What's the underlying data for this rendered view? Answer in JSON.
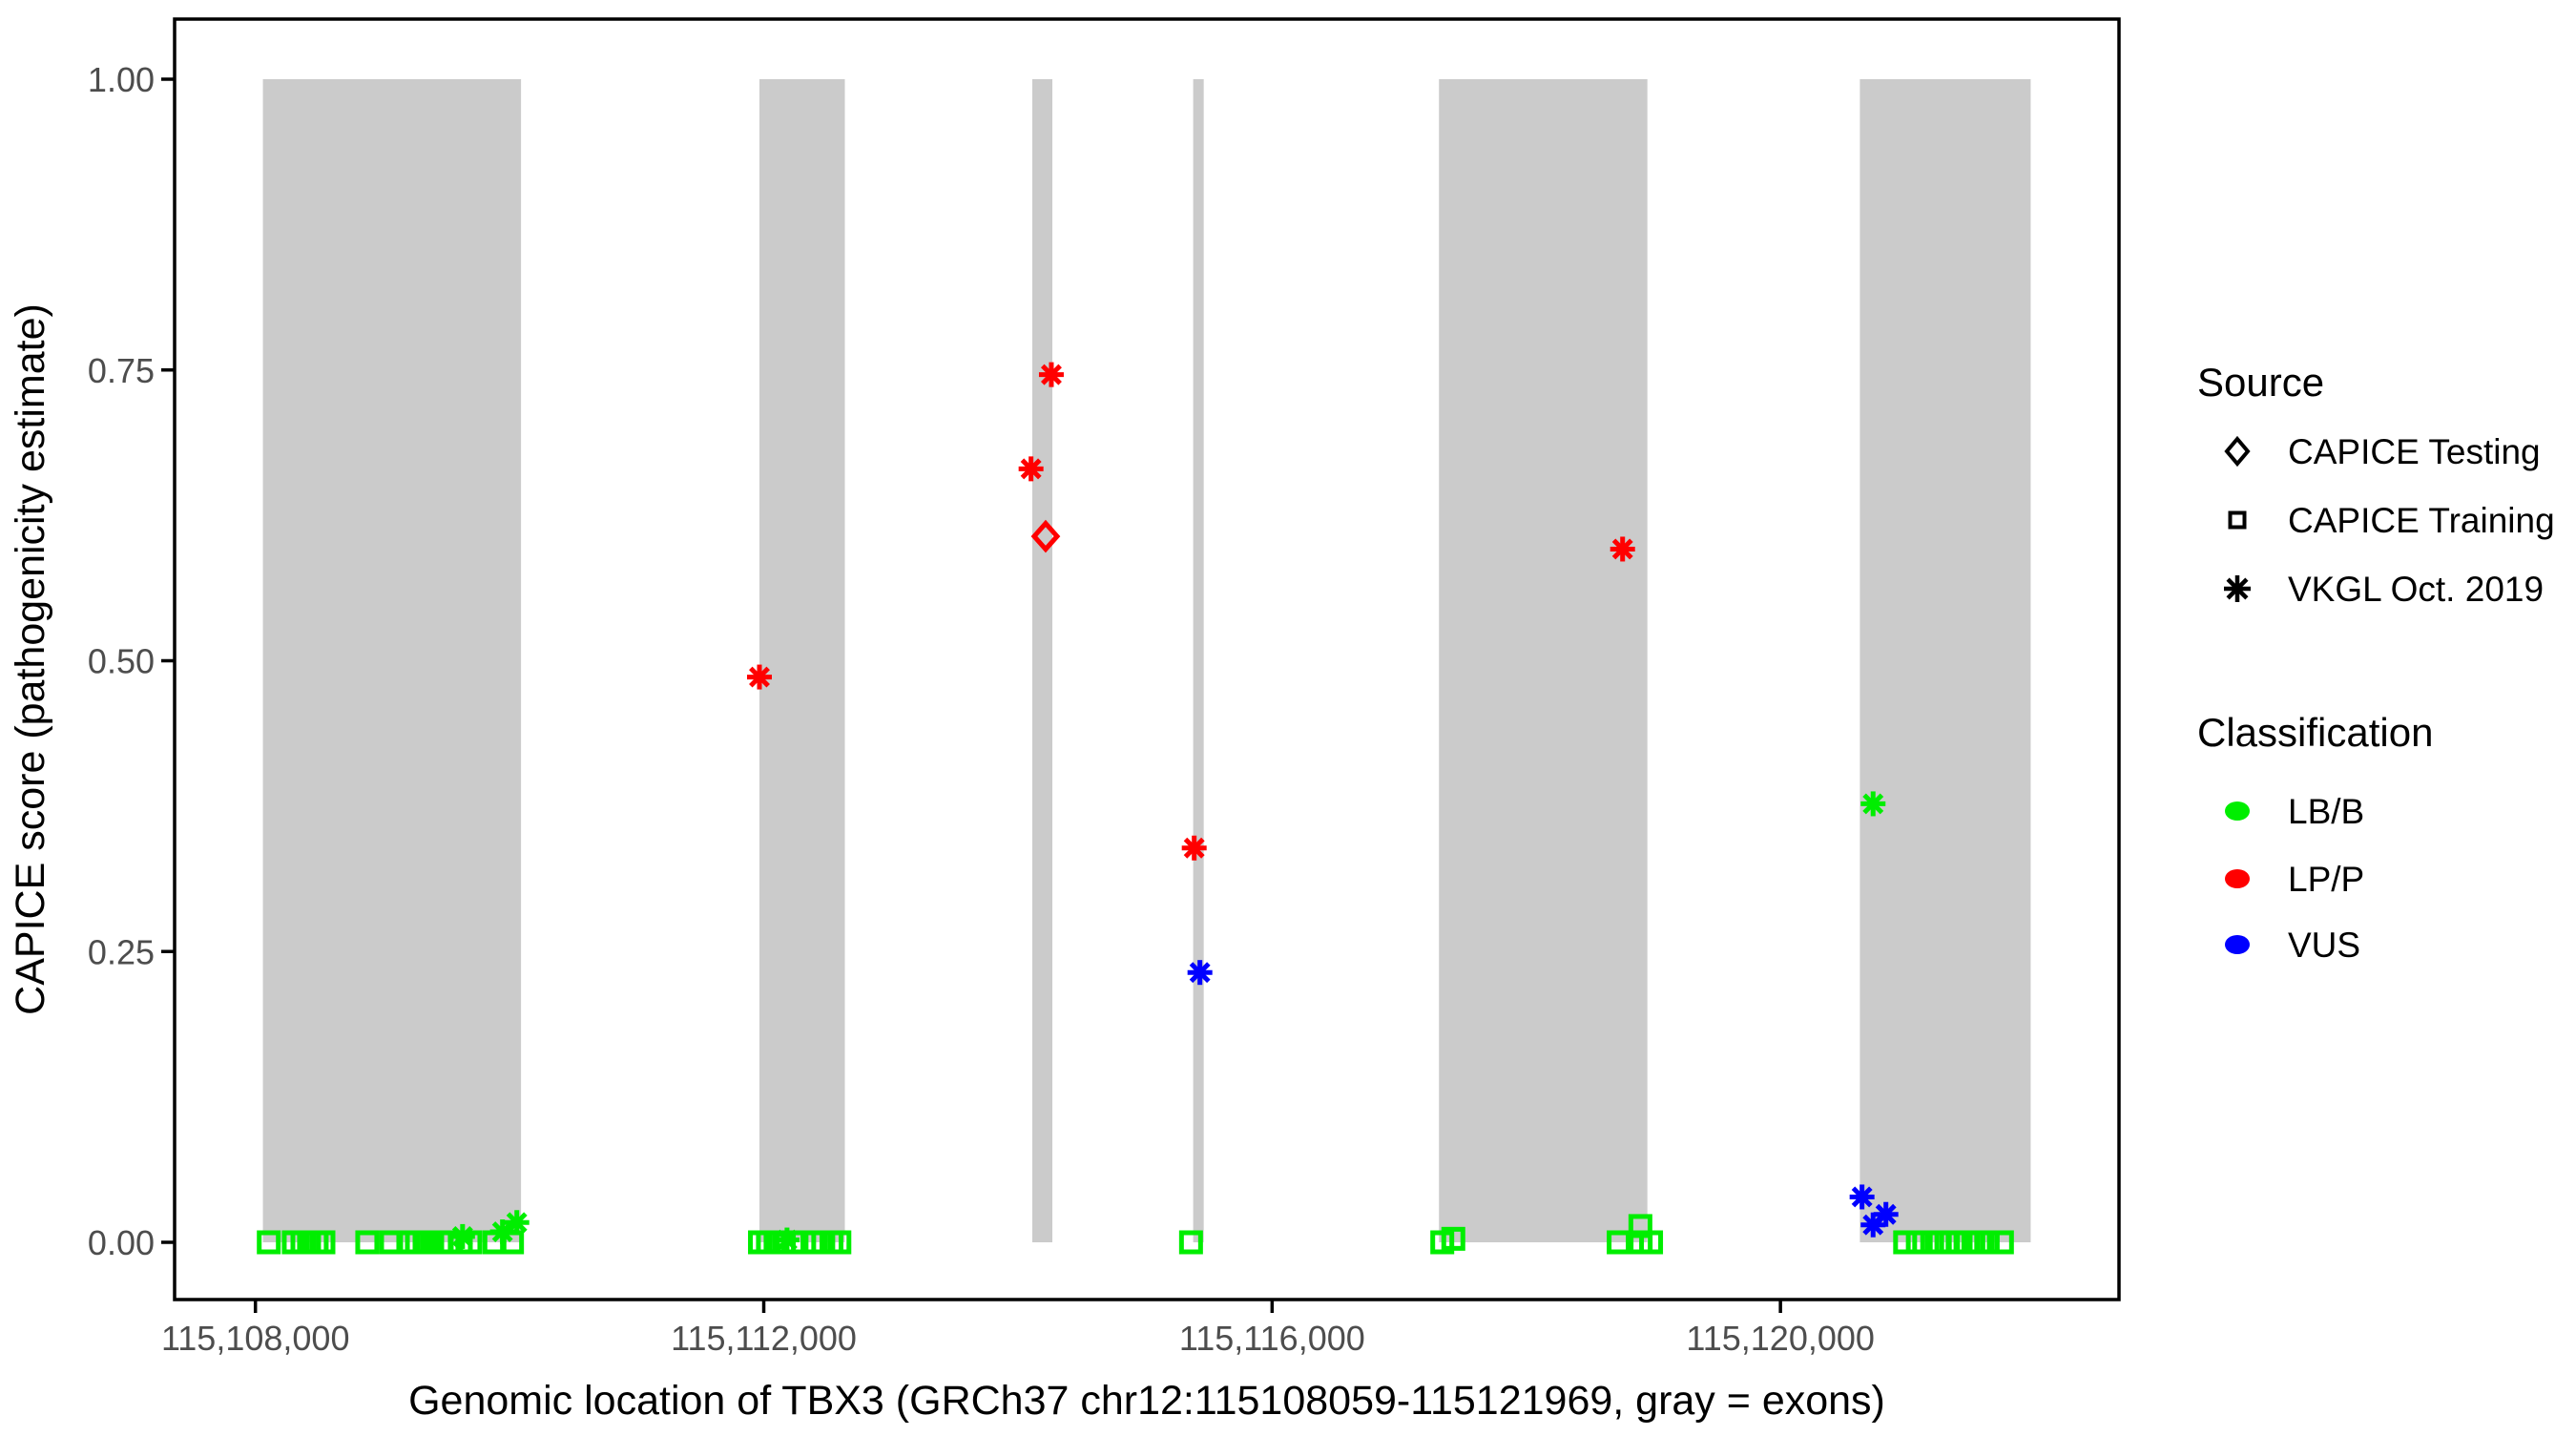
{
  "figure": {
    "background": "#ffffff",
    "panel_border_color": "#000000",
    "exon_color": "#cbcbcb",
    "tick_color": "#000000",
    "tick_label_color": "#4d4d4d",
    "axis_title_color": "#000000",
    "legend_text_color": "#000000"
  },
  "chart_data": {
    "type": "scatter",
    "title": "",
    "xlabel": "Genomic location of TBX3 (GRCh37 chr12:115108059-115121969, gray = exons)",
    "ylabel": "CAPICE score (pathogenicity estimate)",
    "xlim": [
      115107364,
      115122664
    ],
    "ylim": [
      0,
      1
    ],
    "grid": false,
    "x_ticks": [
      {
        "value": 115108000,
        "label": "115,108,000"
      },
      {
        "value": 115112000,
        "label": "115,112,000"
      },
      {
        "value": 115116000,
        "label": "115,116,000"
      },
      {
        "value": 115120000,
        "label": "115,120,000"
      }
    ],
    "y_ticks": [
      {
        "value": 0.0,
        "label": "0.00"
      },
      {
        "value": 0.25,
        "label": "0.25"
      },
      {
        "value": 0.5,
        "label": "0.50"
      },
      {
        "value": 0.75,
        "label": "0.75"
      },
      {
        "value": 1.0,
        "label": "1.00"
      }
    ],
    "exons": [
      {
        "start": 115108059,
        "end": 115110090
      },
      {
        "start": 115111966,
        "end": 115112638
      },
      {
        "start": 115114113,
        "end": 115114271
      },
      {
        "start": 115115379,
        "end": 115115462
      },
      {
        "start": 115117313,
        "end": 115118953
      },
      {
        "start": 115120625,
        "end": 115121969
      }
    ],
    "class_colors": {
      "LB/B": "#00ee00",
      "LP/P": "#ff0000",
      "VUS": "#0000ff"
    },
    "series": [
      {
        "name": "CAPICE Training",
        "marker": "square",
        "points": [
          {
            "x": 115108105,
            "y": 0.0,
            "class": "LB/B"
          },
          {
            "x": 115108302,
            "y": 0.0,
            "class": "LB/B"
          },
          {
            "x": 115108370,
            "y": 0.0,
            "class": "LB/B"
          },
          {
            "x": 115108422,
            "y": 0.0,
            "class": "LB/B"
          },
          {
            "x": 115108482,
            "y": 0.0,
            "class": "LB/B"
          },
          {
            "x": 115108535,
            "y": 0.0,
            "class": "LB/B"
          },
          {
            "x": 115108880,
            "y": 0.0,
            "class": "LB/B"
          },
          {
            "x": 115109068,
            "y": 0.0,
            "class": "LB/B"
          },
          {
            "x": 115109203,
            "y": 0.0,
            "class": "LB/B"
          },
          {
            "x": 115109271,
            "y": 0.0,
            "class": "LB/B"
          },
          {
            "x": 115109331,
            "y": 0.0,
            "class": "LB/B"
          },
          {
            "x": 115109391,
            "y": 0.0,
            "class": "LB/B"
          },
          {
            "x": 115109458,
            "y": 0.0,
            "class": "LB/B"
          },
          {
            "x": 115109518,
            "y": 0.0,
            "class": "LB/B"
          },
          {
            "x": 115109616,
            "y": 0.0,
            "class": "LB/B"
          },
          {
            "x": 115109691,
            "y": 0.0,
            "class": "LB/B"
          },
          {
            "x": 115109881,
            "y": 0.0,
            "class": "LB/B"
          },
          {
            "x": 115110019,
            "y": 0.0,
            "class": "LB/B"
          },
          {
            "x": 115111970,
            "y": 0.0,
            "class": "LB/B"
          },
          {
            "x": 115112033,
            "y": 0.0,
            "class": "LB/B"
          },
          {
            "x": 115112093,
            "y": 0.0,
            "class": "LB/B"
          },
          {
            "x": 115112158,
            "y": 0.0,
            "class": "LB/B"
          },
          {
            "x": 115112233,
            "y": 0.0,
            "class": "LB/B"
          },
          {
            "x": 115112408,
            "y": 0.0,
            "class": "LB/B"
          },
          {
            "x": 115112468,
            "y": 0.0,
            "class": "LB/B"
          },
          {
            "x": 115112533,
            "y": 0.0,
            "class": "LB/B"
          },
          {
            "x": 115112595,
            "y": 0.0,
            "class": "LB/B"
          },
          {
            "x": 115115362,
            "y": 0.0,
            "class": "LB/B"
          },
          {
            "x": 115117339,
            "y": 0.0,
            "class": "LB/B"
          },
          {
            "x": 115117426,
            "y": 0.003,
            "class": "LB/B"
          },
          {
            "x": 115118727,
            "y": 0.0,
            "class": "LB/B"
          },
          {
            "x": 115118898,
            "y": 0.014,
            "class": "LB/B"
          },
          {
            "x": 115118900,
            "y": 0.0,
            "class": "LB/B"
          },
          {
            "x": 115118982,
            "y": 0.0,
            "class": "LB/B"
          },
          {
            "x": 115120981,
            "y": 0.0,
            "class": "LB/B"
          },
          {
            "x": 115121081,
            "y": 0.0,
            "class": "LB/B"
          },
          {
            "x": 115121194,
            "y": 0.0,
            "class": "LB/B"
          },
          {
            "x": 115121254,
            "y": 0.0,
            "class": "LB/B"
          },
          {
            "x": 115121306,
            "y": 0.0,
            "class": "LB/B"
          },
          {
            "x": 115121394,
            "y": 0.0,
            "class": "LB/B"
          },
          {
            "x": 115121469,
            "y": 0.0,
            "class": "LB/B"
          },
          {
            "x": 115121518,
            "y": 0.0,
            "class": "LB/B"
          },
          {
            "x": 115121568,
            "y": 0.0,
            "class": "LB/B"
          },
          {
            "x": 115121631,
            "y": 0.0,
            "class": "LB/B"
          },
          {
            "x": 115121743,
            "y": 0.0,
            "class": "LB/B"
          }
        ]
      },
      {
        "name": "VKGL Oct. 2019",
        "marker": "asterisk",
        "points": [
          {
            "x": 115109630,
            "y": 0.005,
            "class": "LB/B"
          },
          {
            "x": 115109944,
            "y": 0.009,
            "class": "LB/B"
          },
          {
            "x": 115110057,
            "y": 0.017,
            "class": "LB/B"
          },
          {
            "x": 115112183,
            "y": 0.002,
            "class": "LB/B"
          },
          {
            "x": 115120729,
            "y": 0.377,
            "class": "LB/B"
          },
          {
            "x": 115111966,
            "y": 0.486,
            "class": "LP/P"
          },
          {
            "x": 115114103,
            "y": 0.665,
            "class": "LP/P"
          },
          {
            "x": 115114263,
            "y": 0.746,
            "class": "LP/P"
          },
          {
            "x": 115115387,
            "y": 0.339,
            "class": "LP/P"
          },
          {
            "x": 115118758,
            "y": 0.596,
            "class": "LP/P"
          },
          {
            "x": 115115432,
            "y": 0.232,
            "class": "VUS"
          },
          {
            "x": 115120642,
            "y": 0.039,
            "class": "VUS"
          },
          {
            "x": 115120729,
            "y": 0.015,
            "class": "VUS"
          },
          {
            "x": 115120830,
            "y": 0.024,
            "class": "VUS"
          }
        ]
      },
      {
        "name": "CAPICE Testing",
        "marker": "diamond",
        "points": [
          {
            "x": 115114218,
            "y": 0.607,
            "class": "LP/P"
          }
        ]
      }
    ]
  },
  "legend": {
    "source": {
      "title": "Source",
      "items": [
        {
          "label": "CAPICE Testing",
          "marker": "diamond"
        },
        {
          "label": "CAPICE Training",
          "marker": "square"
        },
        {
          "label": "VKGL Oct. 2019",
          "marker": "asterisk"
        }
      ]
    },
    "classification": {
      "title": "Classification",
      "items": [
        {
          "label": "LB/B",
          "color": "#00ee00"
        },
        {
          "label": "LP/P",
          "color": "#ff0000"
        },
        {
          "label": "VUS",
          "color": "#0000ff"
        }
      ]
    }
  }
}
